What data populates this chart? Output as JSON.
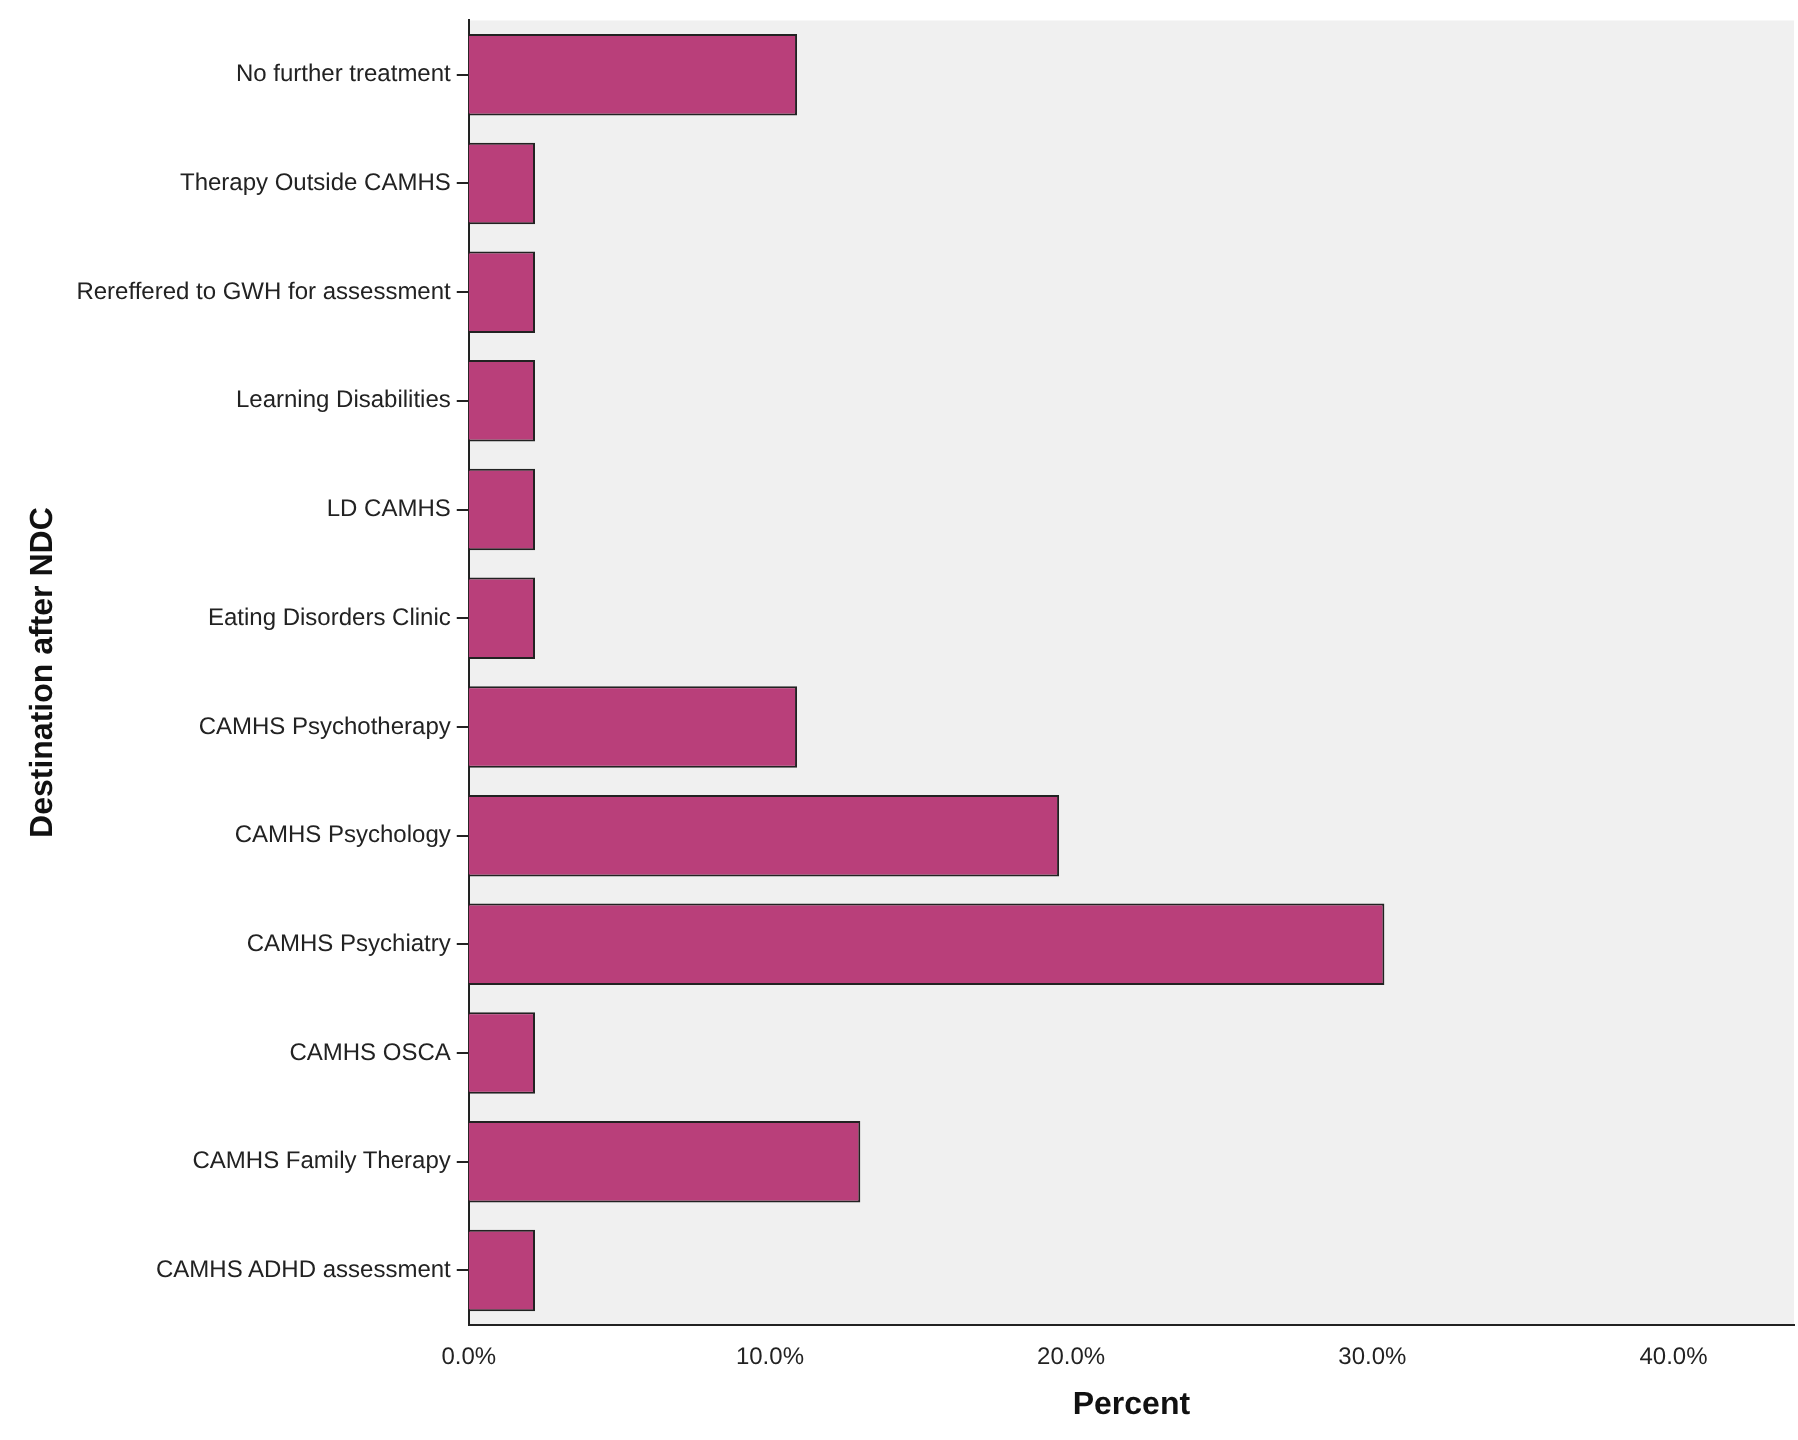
{
  "chart_data": {
    "type": "bar",
    "orientation": "horizontal",
    "xlabel": "Percent",
    "ylabel": "Destination after NDC",
    "categories": [
      "No further treatment",
      "Therapy Outside CAMHS",
      "Rereffered to GWH for assessment",
      "Learning Disabilities",
      "LD CAMHS",
      "Eating Disorders Clinic",
      "CAMHS Psychotherapy",
      "CAMHS Psychology",
      "CAMHS Psychiatry",
      "CAMHS OSCA",
      "CAMHS Family Therapy",
      "CAMHS ADHD assessment"
    ],
    "values": [
      10.9,
      2.2,
      2.2,
      2.2,
      2.2,
      2.2,
      10.9,
      19.6,
      30.4,
      2.2,
      13.0,
      2.2
    ],
    "color": "#b93f7a",
    "xlim": [
      0,
      44
    ],
    "xticks": [
      {
        "value": 0,
        "label": "0.0%"
      },
      {
        "value": 10,
        "label": "10.0%"
      },
      {
        "value": 20,
        "label": "20.0%"
      },
      {
        "value": 30,
        "label": "30.0%"
      },
      {
        "value": 40,
        "label": "40.0%"
      }
    ],
    "grid": false,
    "legend": false
  }
}
